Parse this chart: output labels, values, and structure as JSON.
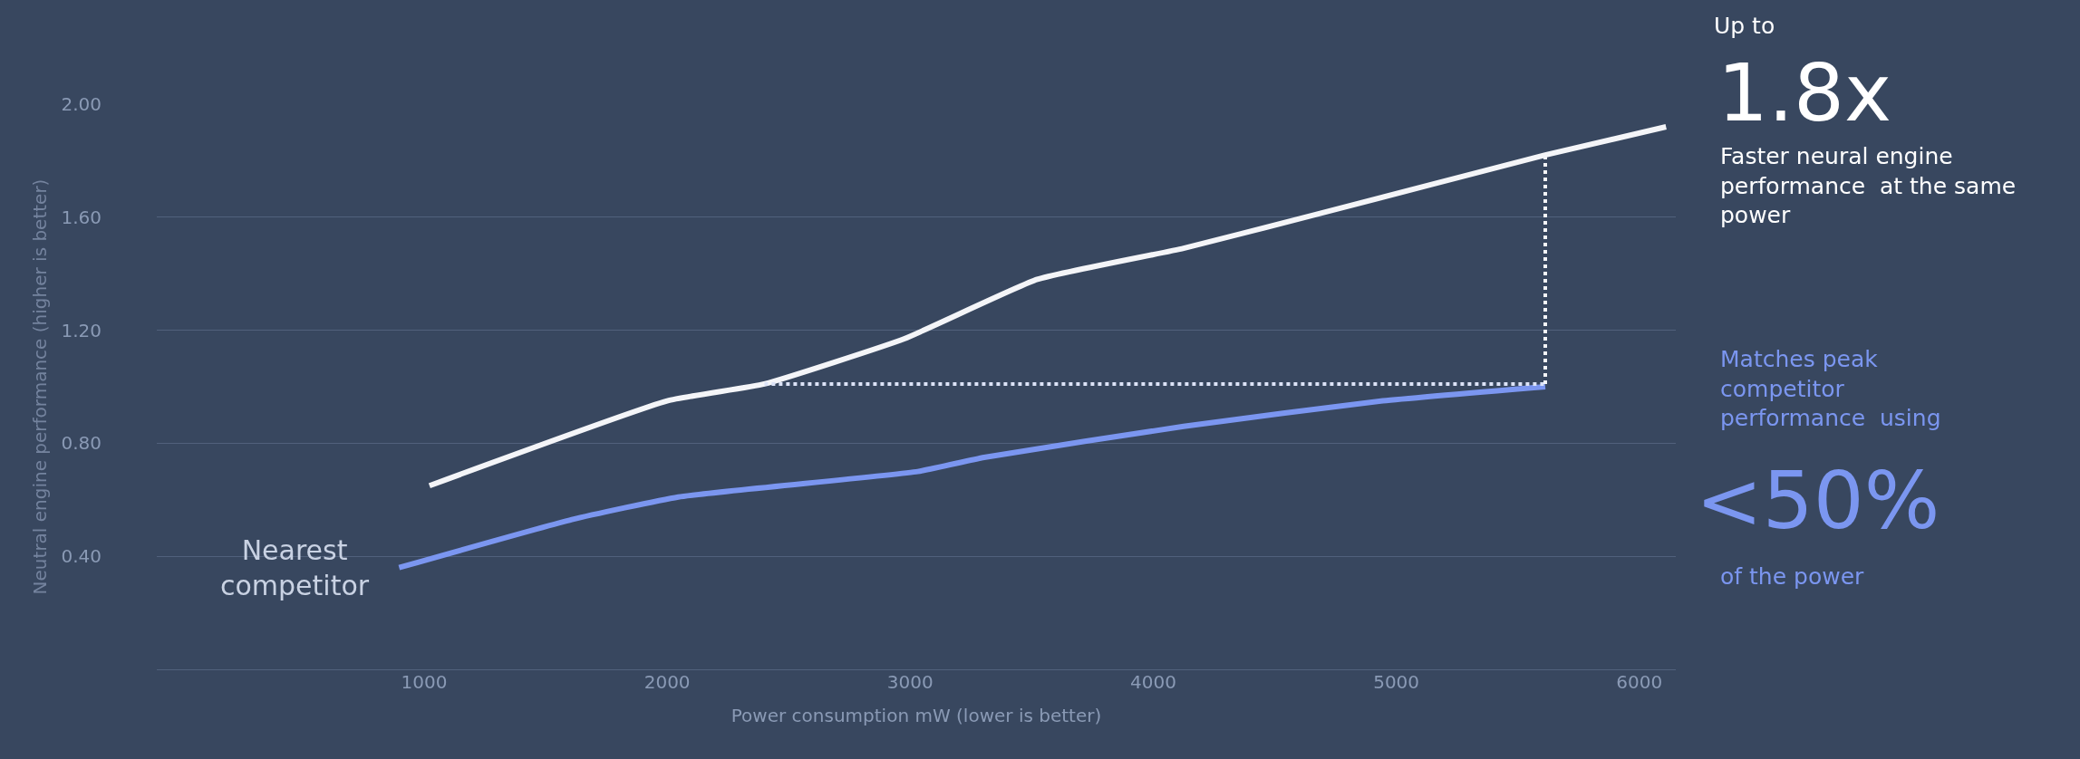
{
  "chart_data": {
    "type": "line",
    "xlabel": "Power consumption mW (lower is better)",
    "ylabel": "Neutral engine performance (higher is better)",
    "series": [
      {
        "color": "#f4f5f8",
        "x": [
          1022,
          2000,
          2400,
          2976,
          3523,
          4125,
          4672,
          5613,
          6110
        ],
        "values": [
          0.65,
          0.95,
          1.01,
          1.17,
          1.38,
          1.49,
          1.61,
          1.82,
          1.92
        ]
      },
      {
        "name": "Nearest competitor",
        "color": "#7b96f0",
        "x": [
          897,
          1608,
          2046,
          3031,
          3304,
          4125,
          4945,
          5613
        ],
        "values": [
          0.36,
          0.53,
          0.61,
          0.7,
          0.75,
          0.86,
          0.95,
          1.0
        ]
      },
      {
        "color": "#dce3f7",
        "line_style": "dotted",
        "x": [
          2400,
          5613
        ],
        "values": [
          1.01,
          1.01
        ]
      },
      {
        "color": "#f4f5f8",
        "line_style": "dotted",
        "x": [
          5613,
          5613
        ],
        "values": [
          1.01,
          1.82
        ]
      }
    ],
    "xlim": [
      -100,
      6150
    ],
    "xticks": [
      1000,
      2000,
      3000,
      4000,
      5000,
      6000
    ],
    "ylim": [
      0,
      2.0
    ],
    "yticks": [
      {
        "value": 0,
        "label": null
      },
      {
        "value": 0.4,
        "label": "0.40"
      },
      {
        "value": 0.8,
        "label": "0.80"
      },
      {
        "value": 1.2,
        "label": "1.20"
      },
      {
        "value": 1.6,
        "label": "1.60"
      },
      {
        "value": 2.0,
        "label": "2.00"
      }
    ],
    "grid": "y",
    "legend": false,
    "marker": "none",
    "line_style": "solid",
    "annotations": [
      "Up to",
      "1.8x",
      "Faster neural engine\nperformance  at the same\npower",
      "Matches peak\ncompetitor\nperformance  using",
      "<50%",
      "of the power"
    ]
  }
}
